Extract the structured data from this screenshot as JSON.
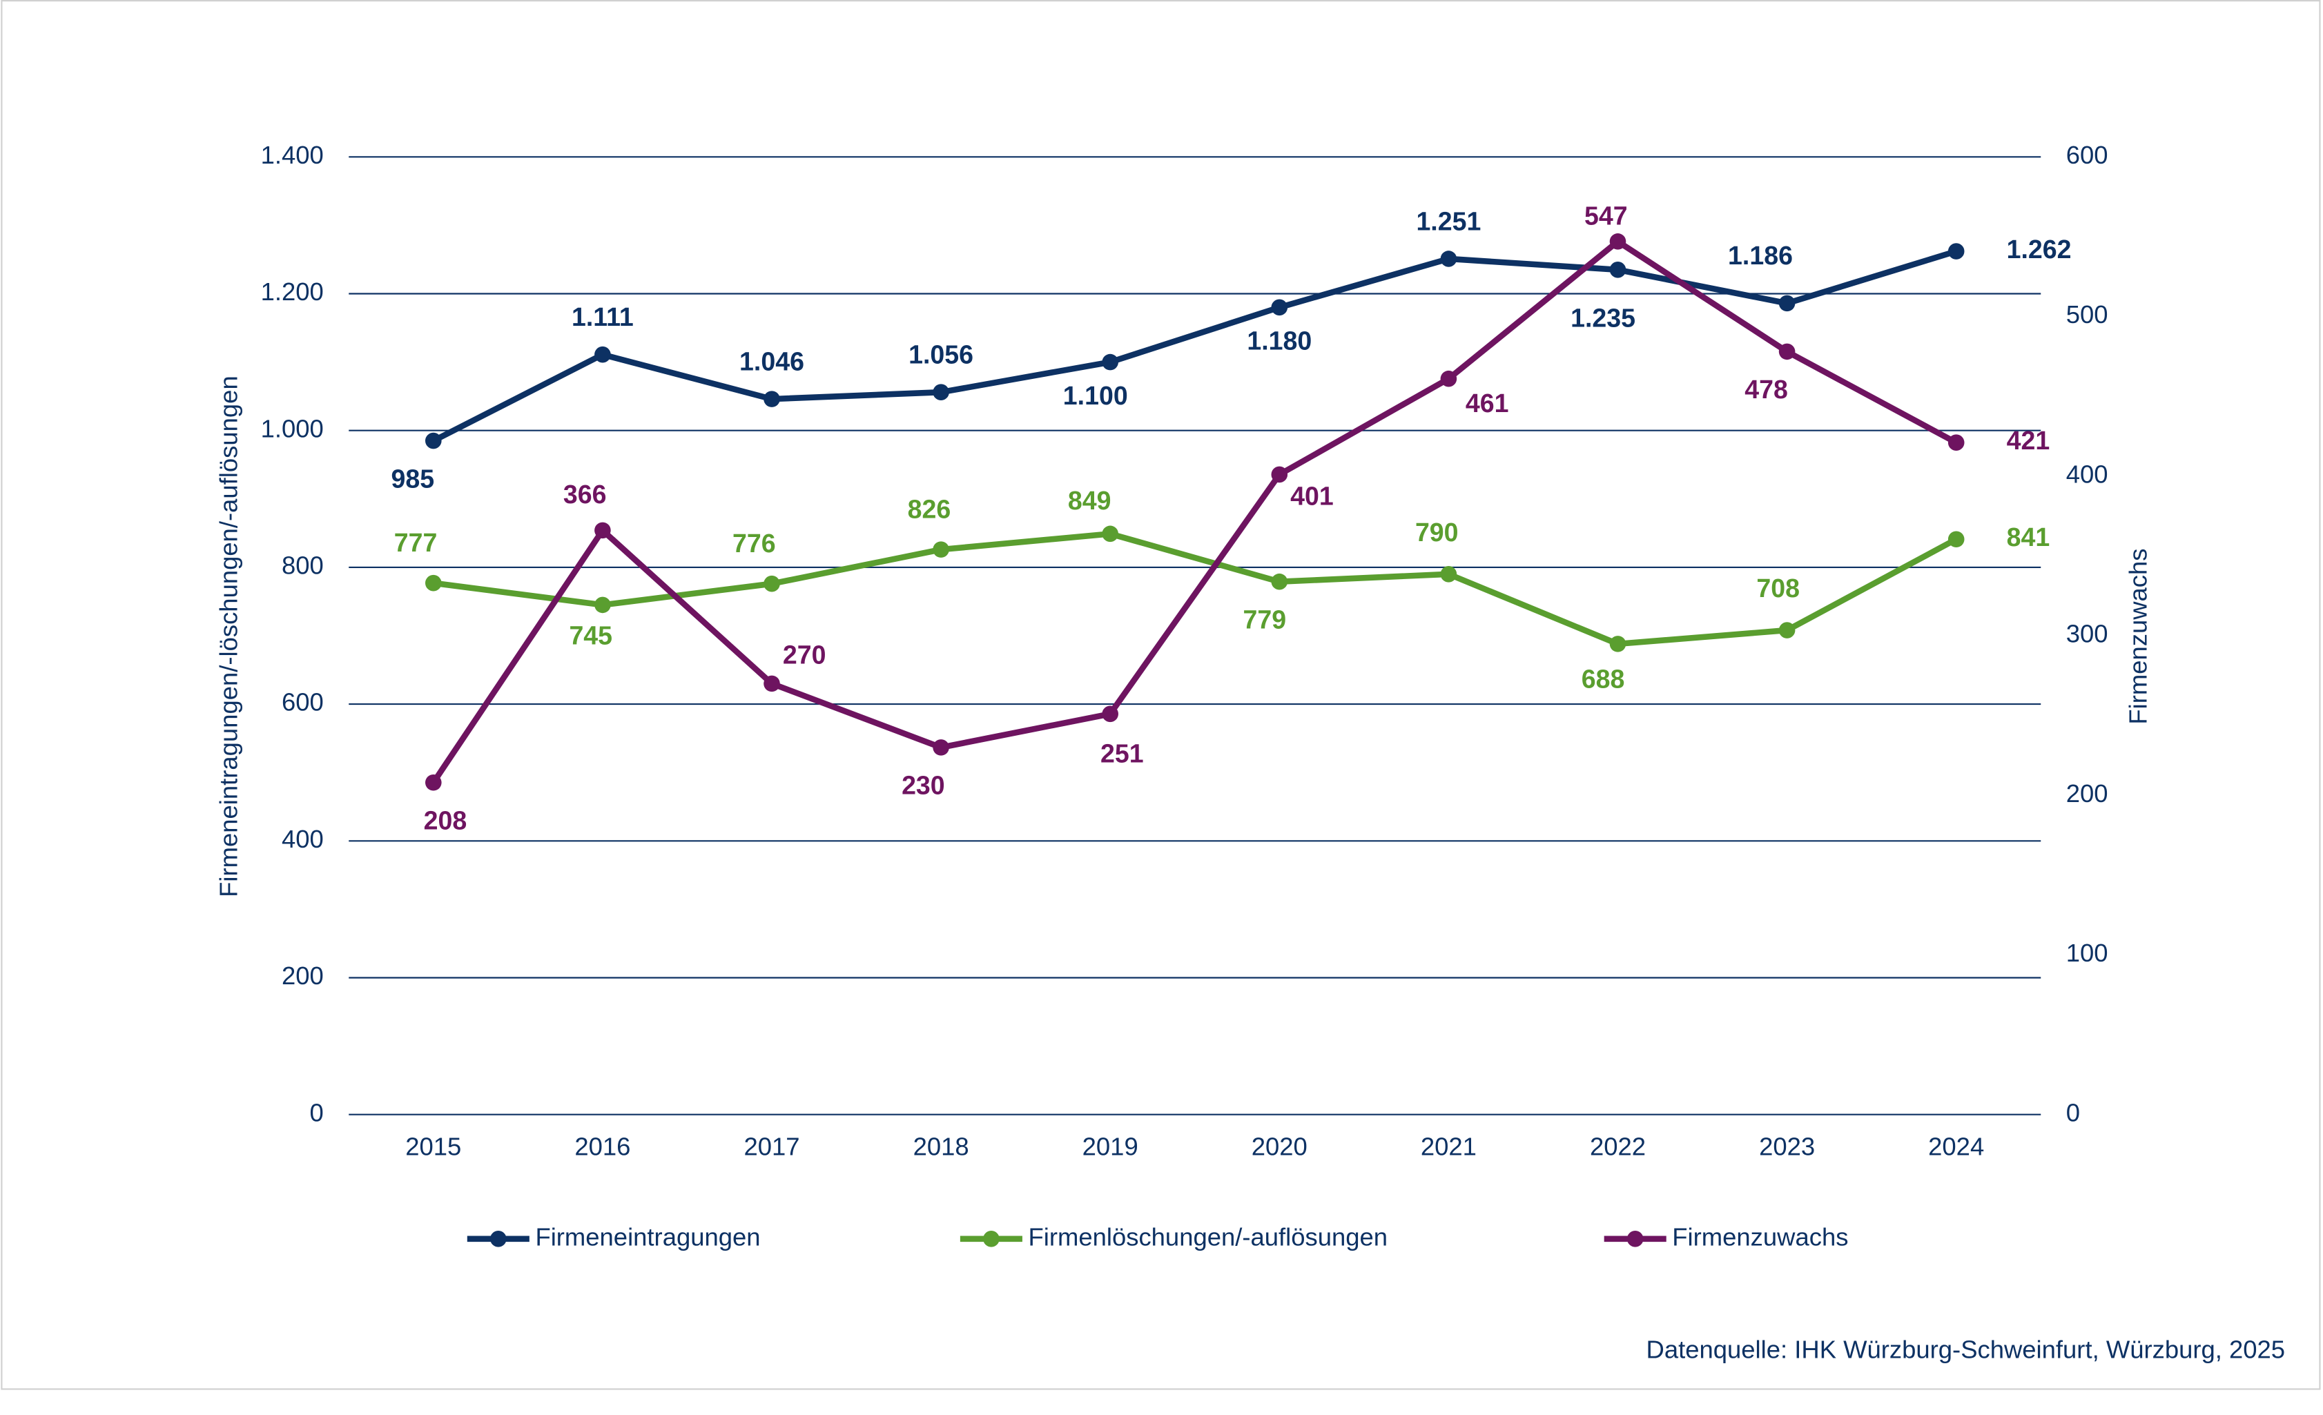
{
  "chart_data": {
    "type": "line",
    "categories": [
      "2015",
      "2016",
      "2017",
      "2018",
      "2019",
      "2020",
      "2021",
      "2022",
      "2023",
      "2024"
    ],
    "series": [
      {
        "name": "Firmeneintragungen",
        "color": "#0d3163",
        "values": [
          985,
          1111,
          1046,
          1056,
          1100,
          1180,
          1251,
          1235,
          1186,
          1262
        ],
        "value_labels": [
          "985",
          "1.111",
          "1.046",
          "1.056",
          "1.100",
          "1.180",
          "1.251",
          "1.235",
          "1.186",
          "1.262"
        ]
      },
      {
        "name": "Firmenlöschungen/-auflösungen",
        "color": "#5a9e2f",
        "values": [
          777,
          745,
          776,
          826,
          849,
          779,
          790,
          688,
          708,
          841
        ]
      },
      {
        "name": "Firmenzuwachs",
        "color": "#6e1460",
        "axis": "y2",
        "values": [
          208,
          366,
          270,
          230,
          251,
          401,
          461,
          547,
          478,
          421
        ]
      }
    ],
    "ylabel": "Firmeneintragungen/-löschungen/-auflösungen",
    "y2label": "Firmenzuwachs",
    "ylim": [
      0,
      1400
    ],
    "yticks": [
      0,
      200,
      400,
      600,
      800,
      {
        "value": 1000,
        "label": "1.000"
      },
      {
        "value": 1200,
        "label": "1.200"
      },
      {
        "value": 1400,
        "label": "1.400"
      }
    ],
    "y2lim": [
      0,
      600
    ],
    "y2ticks": [
      0,
      100,
      200,
      300,
      400,
      500,
      600
    ],
    "grid": true,
    "legend": "bottom",
    "source": "Datenquelle: IHK Würzburg-Schweinfurt, Würzburg, 2025"
  }
}
